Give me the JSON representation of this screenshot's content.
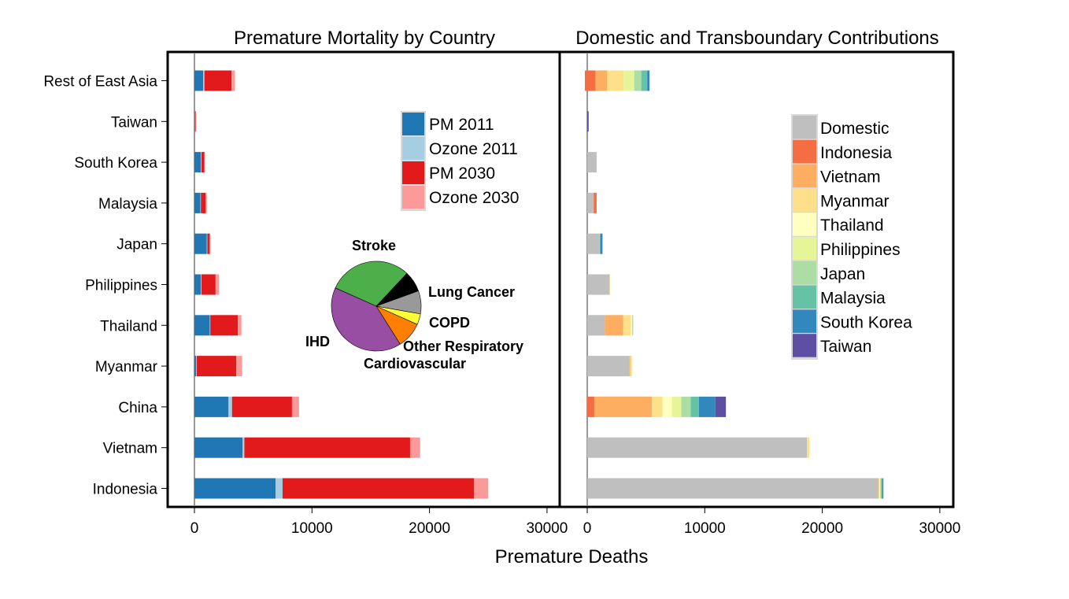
{
  "chart_data": [
    {
      "type": "bar",
      "stacked": true,
      "orientation": "horizontal",
      "title": "Premature Mortality by Country",
      "categories": [
        "Indonesia",
        "Vietnam",
        "China",
        "Myanmar",
        "Thailand",
        "Philippines",
        "Japan",
        "Malaysia",
        "South Korea",
        "Taiwan",
        "Rest of East Asia"
      ],
      "series": [
        {
          "name": "PM 2011",
          "color": "#1f78b4",
          "values": [
            6900,
            4100,
            2900,
            150,
            1300,
            550,
            1050,
            500,
            550,
            60,
            750
          ]
        },
        {
          "name": "Ozone 2011",
          "color": "#a6cee3",
          "values": [
            600,
            150,
            300,
            50,
            50,
            50,
            50,
            50,
            50,
            10,
            100
          ]
        },
        {
          "name": "PM 2030",
          "color": "#e31a1c",
          "values": [
            16300,
            14100,
            5100,
            3350,
            2350,
            1200,
            200,
            400,
            250,
            40,
            2300
          ]
        },
        {
          "name": "Ozone 2030",
          "color": "#fb9a99",
          "values": [
            1200,
            850,
            600,
            500,
            300,
            300,
            50,
            100,
            50,
            10,
            300
          ]
        }
      ],
      "xlim": [
        -2300,
        31000
      ],
      "xticks": [
        "0",
        "10000",
        "20000",
        "30000"
      ],
      "xlabel": "Premature Deaths",
      "legend_position": "top-right",
      "grid": false
    },
    {
      "type": "pie",
      "labels": [
        "Stroke",
        "Lung Cancer",
        "COPD",
        "Other Respiratory",
        "Cardiovascular",
        "IHD"
      ],
      "colors": [
        "#4daf4a",
        "#000000",
        "#999999",
        "#ffff33",
        "#ff7f00",
        "#984ea3"
      ],
      "values": [
        30.3,
        7.5,
        8.3,
        3.9,
        9.4,
        40.6
      ]
    },
    {
      "type": "bar",
      "stacked": true,
      "orientation": "horizontal",
      "title": "Domestic and Transboundary Contributions",
      "categories": [
        "Indonesia",
        "Vietnam",
        "China",
        "Myanmar",
        "Thailand",
        "Philippines",
        "Japan",
        "Malaysia",
        "South Korea",
        "Taiwan",
        "Rest of East Asia"
      ],
      "series": [
        {
          "name": "Domestic",
          "color": "#bfbfbf",
          "values": [
            24700,
            18700,
            0,
            3600,
            1500,
            1900,
            1050,
            550,
            800,
            0,
            0
          ]
        },
        {
          "name": "Indonesia",
          "color": "#f46d43",
          "values": [
            0,
            0,
            600,
            0,
            0,
            0,
            0,
            250,
            0,
            0,
            900
          ]
        },
        {
          "name": "Vietnam",
          "color": "#fdae61",
          "values": [
            100,
            0,
            4900,
            50,
            1550,
            0,
            0,
            0,
            0,
            0,
            1000
          ]
        },
        {
          "name": "Myanmar",
          "color": "#fee08b",
          "values": [
            50,
            200,
            900,
            150,
            650,
            50,
            0,
            0,
            0,
            0,
            1400
          ]
        },
        {
          "name": "Thailand",
          "color": "#ffffbf",
          "values": [
            50,
            100,
            800,
            0,
            150,
            0,
            0,
            0,
            0,
            0,
            0
          ]
        },
        {
          "name": "Philippines",
          "color": "#e6f598",
          "values": [
            50,
            0,
            800,
            0,
            0,
            0,
            0,
            0,
            0,
            0,
            900
          ]
        },
        {
          "name": "Japan",
          "color": "#abdda4",
          "values": [
            50,
            0,
            800,
            0,
            0,
            0,
            50,
            0,
            0,
            0,
            600
          ]
        },
        {
          "name": "Malaysia",
          "color": "#66c2a5",
          "values": [
            100,
            0,
            700,
            0,
            50,
            0,
            0,
            0,
            0,
            0,
            500
          ]
        },
        {
          "name": "South Korea",
          "color": "#3288bd",
          "values": [
            100,
            0,
            1400,
            0,
            0,
            0,
            200,
            0,
            0,
            0,
            200
          ]
        },
        {
          "name": "Taiwan",
          "color": "#5e4fa2",
          "values": [
            0,
            0,
            900,
            0,
            0,
            0,
            0,
            0,
            0,
            120,
            0
          ]
        }
      ],
      "offsets": [
        0,
        0,
        0,
        0,
        0,
        0,
        0,
        0,
        0,
        0,
        -200
      ],
      "xlim": [
        -2300,
        31000
      ],
      "xticks": [
        "0",
        "10000",
        "20000",
        "30000"
      ],
      "legend_position": "top-right",
      "grid": false
    }
  ]
}
